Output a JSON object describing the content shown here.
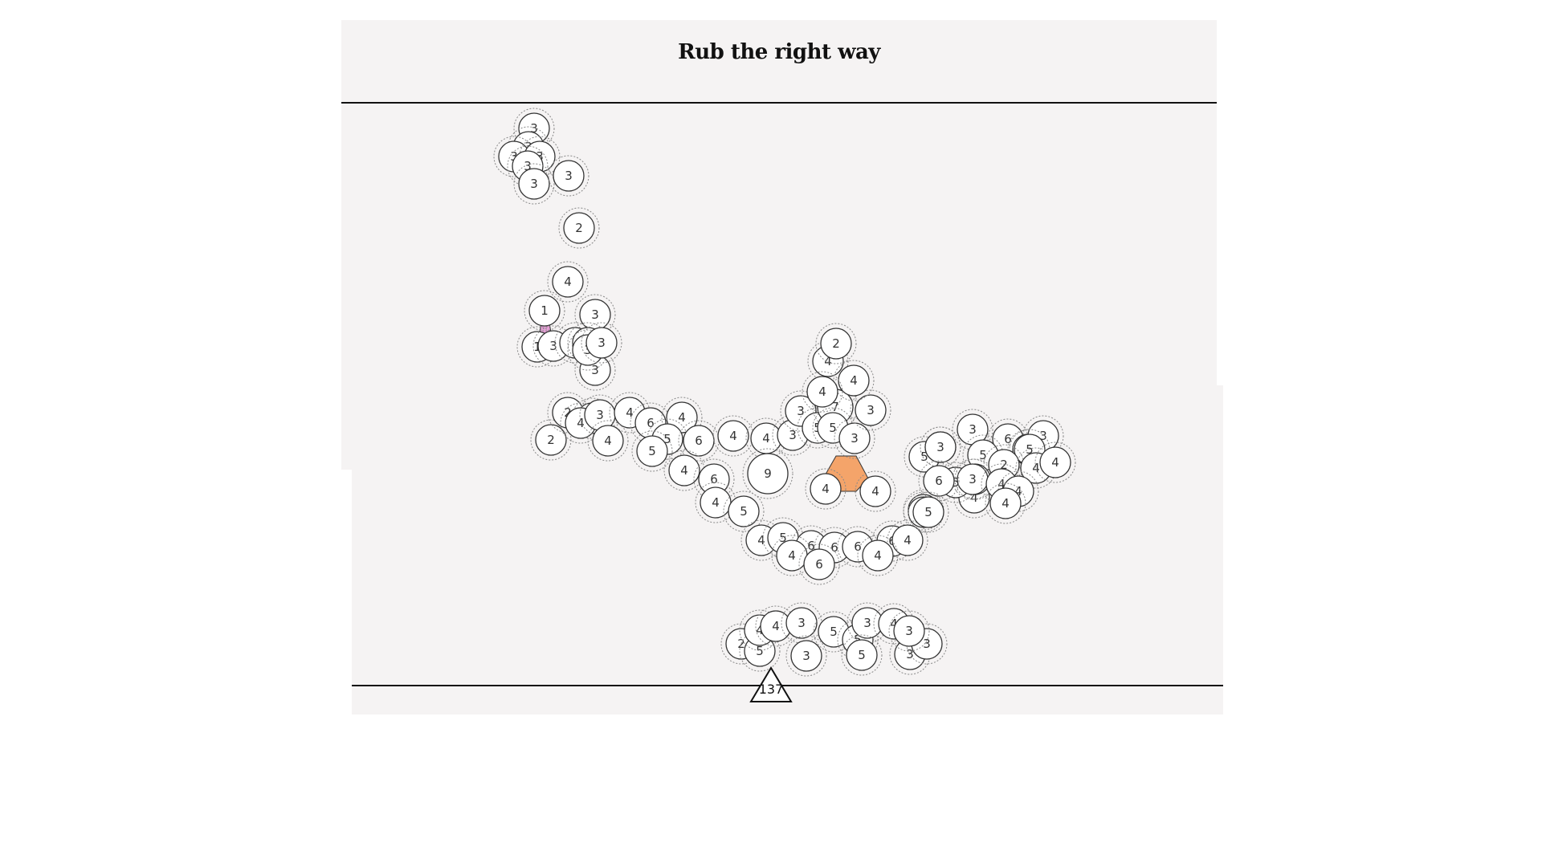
{
  "game": {
    "title": "Rub the right way",
    "launcher_count": "137",
    "colors": {
      "background": "#f5f3f3",
      "bubble_fill": "#ffffff",
      "bubble_stroke": "#333333",
      "halo_stroke": "#888888",
      "pink_piece": "#e8a0d8",
      "orange_piece": "#f4a46a"
    },
    "bubble_values": [
      "3",
      "3",
      "3",
      "3",
      "3",
      "3",
      "3",
      "2",
      "2",
      "4",
      "1",
      "1",
      "3",
      "3",
      "3",
      "3",
      "3",
      "3",
      "3",
      "2",
      "2",
      "4",
      "3",
      "4",
      "4",
      "6",
      "4",
      "5",
      "5",
      "6",
      "4",
      "6",
      "4",
      "5",
      "4",
      "4",
      "9",
      "3",
      "3",
      "5",
      "7",
      "5",
      "3",
      "3",
      "4",
      "4",
      "4",
      "2",
      "4",
      "4",
      "5",
      "4",
      "6",
      "3",
      "6",
      "5",
      "5",
      "3",
      "4",
      "5",
      "3",
      "3",
      "5",
      "3",
      "2",
      "4",
      "4",
      "4",
      "4",
      "4",
      "5",
      "6",
      "4",
      "5",
      "6",
      "6",
      "6",
      "6",
      "4",
      "4",
      "4",
      "6",
      "5",
      "2",
      "5",
      "4",
      "4",
      "3",
      "3",
      "5",
      "5",
      "3",
      "4",
      "3",
      "3",
      "3",
      "5"
    ]
  }
}
